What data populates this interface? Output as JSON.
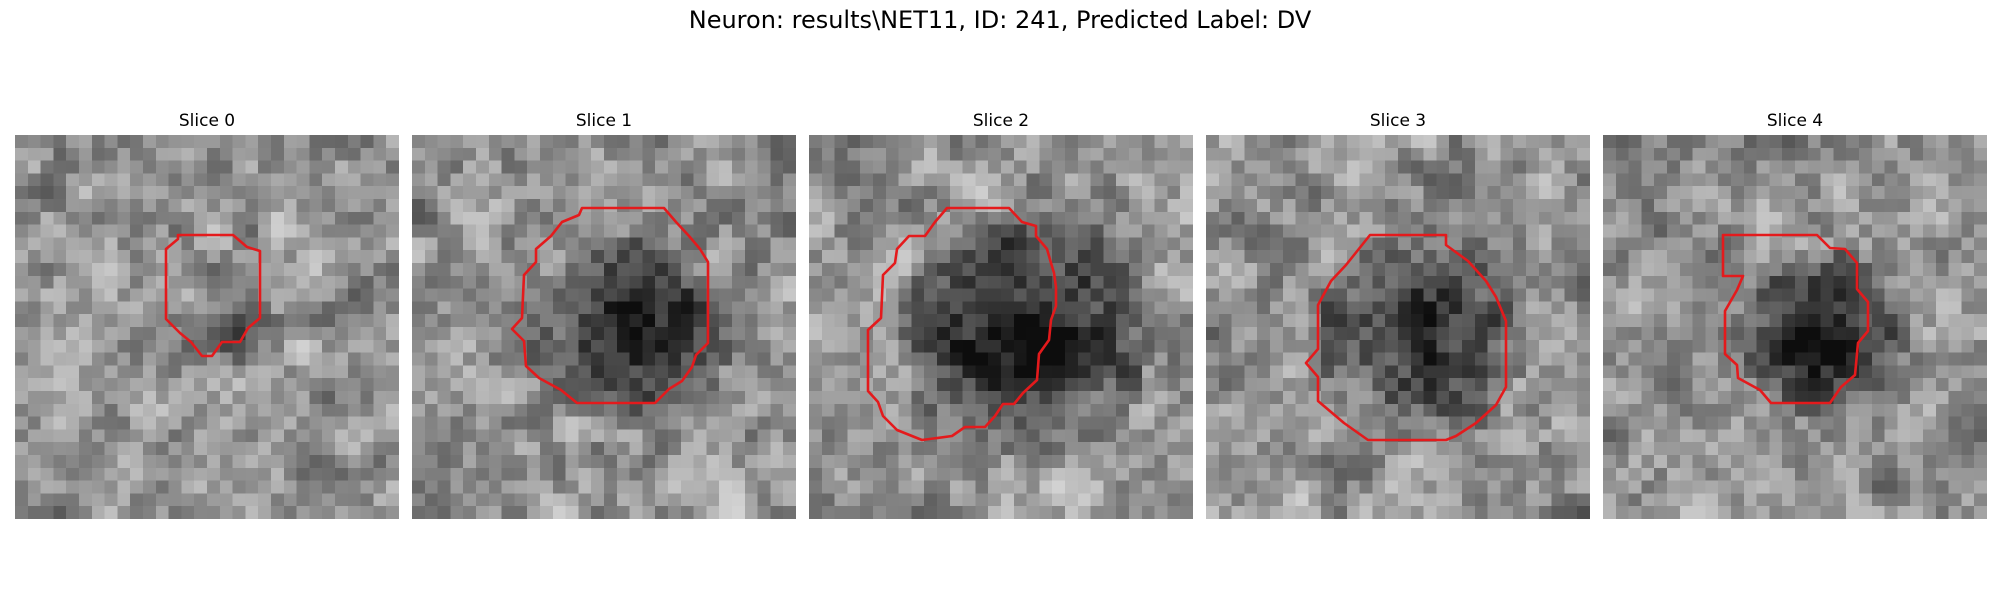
{
  "title": "Neuron: results\\NET11, ID: 241, Predicted Label: DV",
  "contour_color": "#e41a1c",
  "grid_size": 30,
  "slices": [
    {
      "label": "Slice 0",
      "roi_radius": 0.13,
      "darkness": 0.28,
      "seed": 11
    },
    {
      "label": "Slice 1",
      "roi_radius": 0.26,
      "darkness": 0.55,
      "seed": 23
    },
    {
      "label": "Slice 2",
      "roi_radius": 0.33,
      "darkness": 0.6,
      "seed": 37
    },
    {
      "label": "Slice 3",
      "roi_radius": 0.28,
      "darkness": 0.5,
      "seed": 41
    },
    {
      "label": "Slice 4",
      "roi_radius": 0.22,
      "darkness": 0.6,
      "seed": 53
    }
  ]
}
